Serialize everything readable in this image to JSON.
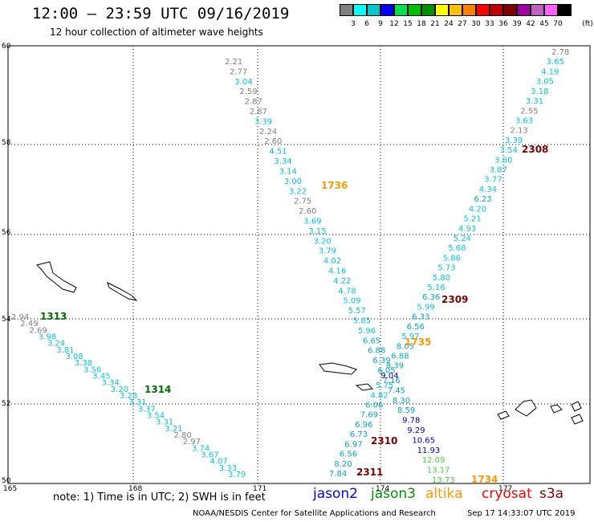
{
  "header": {
    "title": "12:00 – 23:59 UTC 09/16/2019",
    "subtitle": "12 hour collection of altimeter wave heights"
  },
  "scale": {
    "unit": "(ft)",
    "colors": [
      "#808080",
      "#00ffff",
      "#00c8c8",
      "#0000ff",
      "#00e050",
      "#00c000",
      "#009000",
      "#ffff00",
      "#ffc000",
      "#ff8000",
      "#ff0000",
      "#c00000",
      "#800000",
      "#a000a0",
      "#c060c0",
      "#ff60ff",
      "#000000"
    ],
    "labels": [
      "3",
      "6",
      "9",
      "12",
      "15",
      "18",
      "21",
      "24",
      "27",
      "30",
      "33",
      "36",
      "39",
      "42",
      "45",
      "70"
    ]
  },
  "axes": {
    "lat_labels": [
      "60",
      "58",
      "56",
      "54",
      "52",
      "50"
    ],
    "lon_labels": [
      "165",
      "168",
      "171",
      "174",
      "177"
    ]
  },
  "markers": [
    {
      "text": "1313",
      "color": "#007000"
    },
    {
      "text": "1314",
      "color": "#007000"
    },
    {
      "text": "1736",
      "color": "#ff9900"
    },
    {
      "text": "1735",
      "color": "#ff9900"
    },
    {
      "text": "1734",
      "color": "#ff9900"
    },
    {
      "text": "2308",
      "color": "#800000"
    },
    {
      "text": "2309",
      "color": "#800000"
    },
    {
      "text": "2310",
      "color": "#800000"
    },
    {
      "text": "2311",
      "color": "#800000"
    }
  ],
  "tracks": {
    "t1": [
      "2.94",
      "2.49",
      "2.69",
      "3.98",
      "3.24",
      "3.81",
      "3.08",
      "3.38",
      "3.56",
      "3.45",
      "3.34",
      "3.20",
      "3.28",
      "3.31",
      "3.37",
      "3.54",
      "3.31",
      "3.21",
      "2.80",
      "2.97",
      "3.74",
      "3.67",
      "4.07",
      "3.33",
      "3.79"
    ],
    "t2": [
      "2.21",
      "2.77",
      "3.04",
      "2.59",
      "2.87",
      "2.87",
      "3.39",
      "2.24",
      "2.60",
      "4.51",
      "3.34",
      "3.14",
      "3.00",
      "3.22",
      "2.75",
      "2.60",
      "3.69",
      "3.15",
      "3.20",
      "3.79",
      "4.02",
      "4.16",
      "4.22",
      "4.78",
      "5.09",
      "5.57",
      "5.85",
      "5.96",
      "6.65",
      "6.88",
      "6.39",
      "6.05",
      "7.16",
      "7.45",
      "8.30",
      "8.59",
      "9.78",
      "9.29",
      "10.65",
      "11.93",
      "12.09",
      "13.17",
      "13.73"
    ],
    "t3": [
      "2.78",
      "3.65",
      "4.19",
      "3.05",
      "3.18",
      "3.31",
      "2.55",
      "3.63",
      "2.13",
      "3.39",
      "3.54",
      "3.60",
      "3.87",
      "3.77",
      "4.34",
      "6.23",
      "4.20",
      "5.21",
      "4.93",
      "5.24",
      "5.68",
      "5.86",
      "5.73",
      "5.80",
      "5.16",
      "6.36",
      "5.99",
      "6.33",
      "6.56",
      "5.97",
      "8.05",
      "6.88",
      "8.39",
      "9.04",
      "5.75",
      "4.82",
      "6.06",
      "7.69",
      "6.96",
      "6.73",
      "6.97",
      "6.56",
      "8.20",
      "7.84"
    ]
  },
  "footer": {
    "note": "note: 1) Time is in UTC; 2) SWH is in feet",
    "legend": [
      {
        "name": "jason2",
        "color": "#0000ff"
      },
      {
        "name": "jason3",
        "color": "#009000"
      },
      {
        "name": "altika",
        "color": "#ff9900"
      },
      {
        "name": "cryosat",
        "color": "#ff0000"
      },
      {
        "name": "s3a",
        "color": "#800000"
      }
    ],
    "credit": "NOAA/NESDIS Center for Satellite Applications and Research",
    "timestamp": "Sep 17 14:33:07 UTC 2019"
  }
}
